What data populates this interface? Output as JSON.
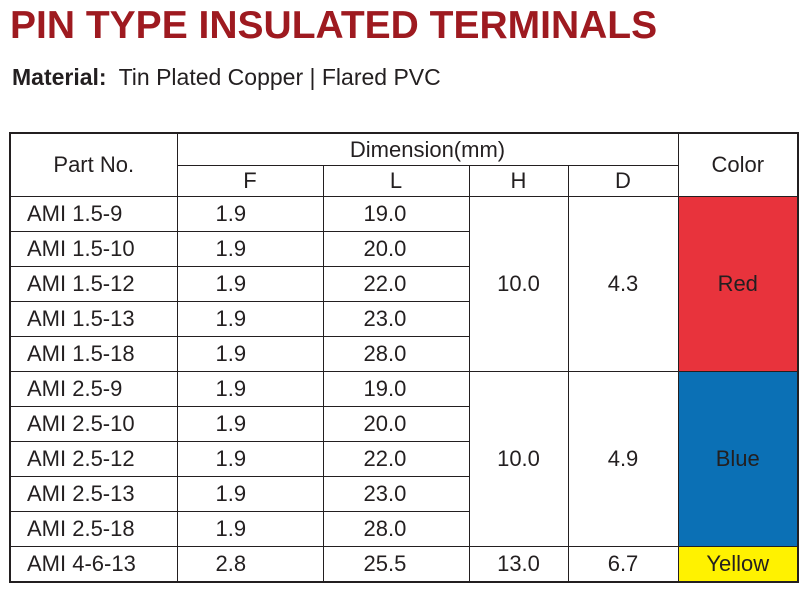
{
  "title": "PIN TYPE INSULATED TERMINALS",
  "material": {
    "label": "Material:",
    "value": "Tin Plated Copper | Flared PVC"
  },
  "table": {
    "headers": {
      "part_no": "Part No.",
      "dimension": "Dimension(mm)",
      "f": "F",
      "l": "L",
      "h": "H",
      "d": "D",
      "color": "Color"
    },
    "groups": [
      {
        "h": "10.0",
        "d": "4.3",
        "color": "Red",
        "color_hex": "#e8333c",
        "rows": [
          {
            "part": "AMI 1.5-9",
            "f": "1.9",
            "l": "19.0"
          },
          {
            "part": "AMI 1.5-10",
            "f": "1.9",
            "l": "20.0"
          },
          {
            "part": "AMI 1.5-12",
            "f": "1.9",
            "l": "22.0"
          },
          {
            "part": "AMI 1.5-13",
            "f": "1.9",
            "l": "23.0"
          },
          {
            "part": "AMI 1.5-18",
            "f": "1.9",
            "l": "28.0"
          }
        ]
      },
      {
        "h": "10.0",
        "d": "4.9",
        "color": "Blue",
        "color_hex": "#0b70b5",
        "rows": [
          {
            "part": "AMI 2.5-9",
            "f": "1.9",
            "l": "19.0"
          },
          {
            "part": "AMI 2.5-10",
            "f": "1.9",
            "l": "20.0"
          },
          {
            "part": "AMI 2.5-12",
            "f": "1.9",
            "l": "22.0"
          },
          {
            "part": "AMI 2.5-13",
            "f": "1.9",
            "l": "23.0"
          },
          {
            "part": "AMI 2.5-18",
            "f": "1.9",
            "l": "28.0"
          }
        ]
      },
      {
        "h": "13.0",
        "d": "6.7",
        "color": "Yellow",
        "color_hex": "#fff200",
        "rows": [
          {
            "part": "AMI 4-6-13",
            "f": "2.8",
            "l": "25.5"
          }
        ]
      }
    ]
  }
}
